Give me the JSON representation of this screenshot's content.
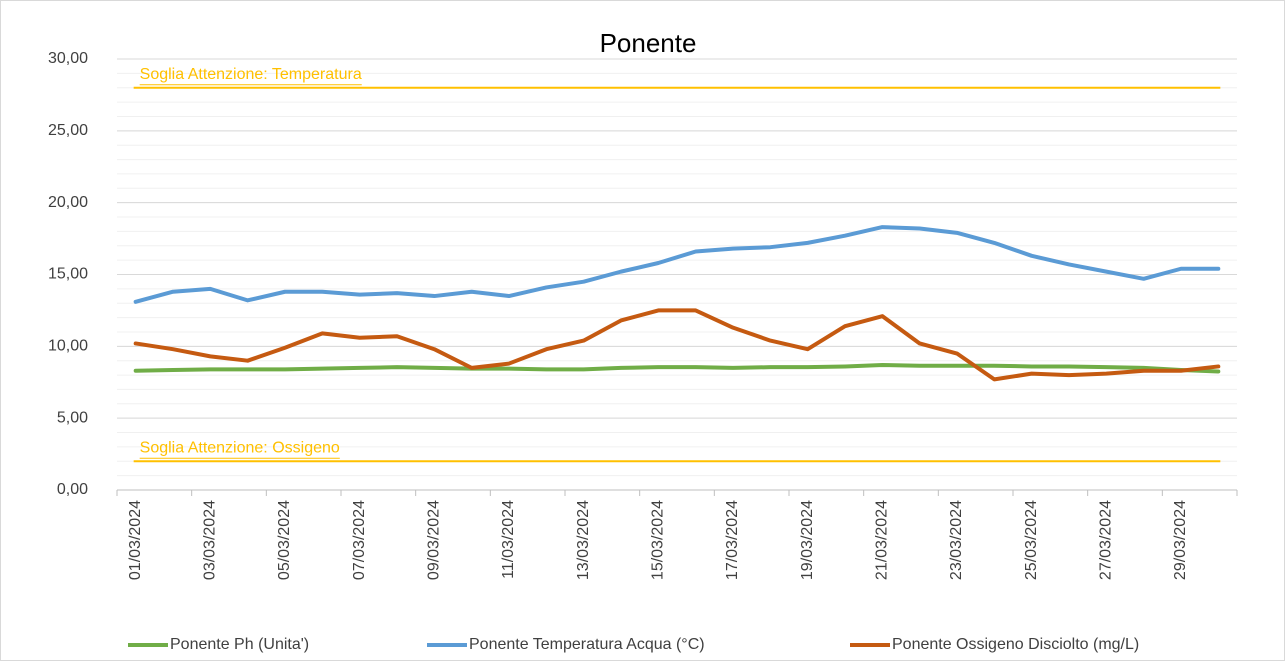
{
  "chart_data": {
    "type": "line",
    "title": "Ponente",
    "categories": [
      "01/03/2024",
      null,
      "03/03/2024",
      null,
      "05/03/2024",
      null,
      "07/03/2024",
      null,
      "09/03/2024",
      null,
      "11/03/2024",
      null,
      "13/03/2024",
      null,
      "15/03/2024",
      null,
      "17/03/2024",
      null,
      "19/03/2024",
      null,
      "21/03/2024",
      null,
      "23/03/2024",
      null,
      "25/03/2024",
      null,
      "27/03/2024",
      null,
      "29/03/2024",
      null
    ],
    "series": [
      {
        "name": "Ponente Ph (Unita')",
        "color": "#70ad47",
        "values": [
          8.3,
          8.35,
          8.4,
          8.4,
          8.4,
          8.45,
          8.5,
          8.55,
          8.5,
          8.45,
          8.45,
          8.4,
          8.4,
          8.5,
          8.55,
          8.55,
          8.5,
          8.55,
          8.55,
          8.6,
          8.7,
          8.65,
          8.65,
          8.65,
          8.6,
          8.6,
          8.55,
          8.5,
          8.35,
          8.25
        ]
      },
      {
        "name": "Ponente Temperatura Acqua (°C)",
        "color": "#5b9bd5",
        "values": [
          13.1,
          13.8,
          14.0,
          13.2,
          13.8,
          13.8,
          13.6,
          13.7,
          13.5,
          13.8,
          13.5,
          14.1,
          14.5,
          15.2,
          15.8,
          16.6,
          16.8,
          16.9,
          17.2,
          17.7,
          18.3,
          18.2,
          17.9,
          17.2,
          16.3,
          15.7,
          15.2,
          14.7,
          15.4,
          15.4
        ]
      },
      {
        "name": "Ponente Ossigeno Disciolto (mg/L)",
        "color": "#c55a11",
        "values": [
          10.2,
          9.8,
          9.3,
          9.0,
          9.9,
          10.9,
          10.6,
          10.7,
          9.8,
          8.5,
          8.8,
          9.8,
          10.4,
          11.8,
          12.5,
          12.5,
          11.3,
          10.4,
          9.8,
          11.4,
          12.1,
          10.2,
          9.5,
          7.7,
          8.1,
          8.0,
          8.1,
          8.3,
          8.3,
          8.6
        ]
      }
    ],
    "thresholds": [
      {
        "label": "Soglia Attenzione: Temperatura",
        "value": 28,
        "color": "#ffc000"
      },
      {
        "label": "Soglia Attenzione: Ossigeno",
        "value": 2,
        "color": "#ffc000"
      }
    ],
    "ylim": [
      0,
      30
    ],
    "yticks": [
      {
        "value": 0,
        "label": "0,00"
      },
      {
        "value": 5,
        "label": "5,00"
      },
      {
        "value": 10,
        "label": "10,00"
      },
      {
        "value": 15,
        "label": "15,00"
      },
      {
        "value": 20,
        "label": "20,00"
      },
      {
        "value": 25,
        "label": "25,00"
      },
      {
        "value": 30,
        "label": "30,00"
      }
    ],
    "grid": true,
    "minor_grid": true,
    "legend": "bottom"
  }
}
